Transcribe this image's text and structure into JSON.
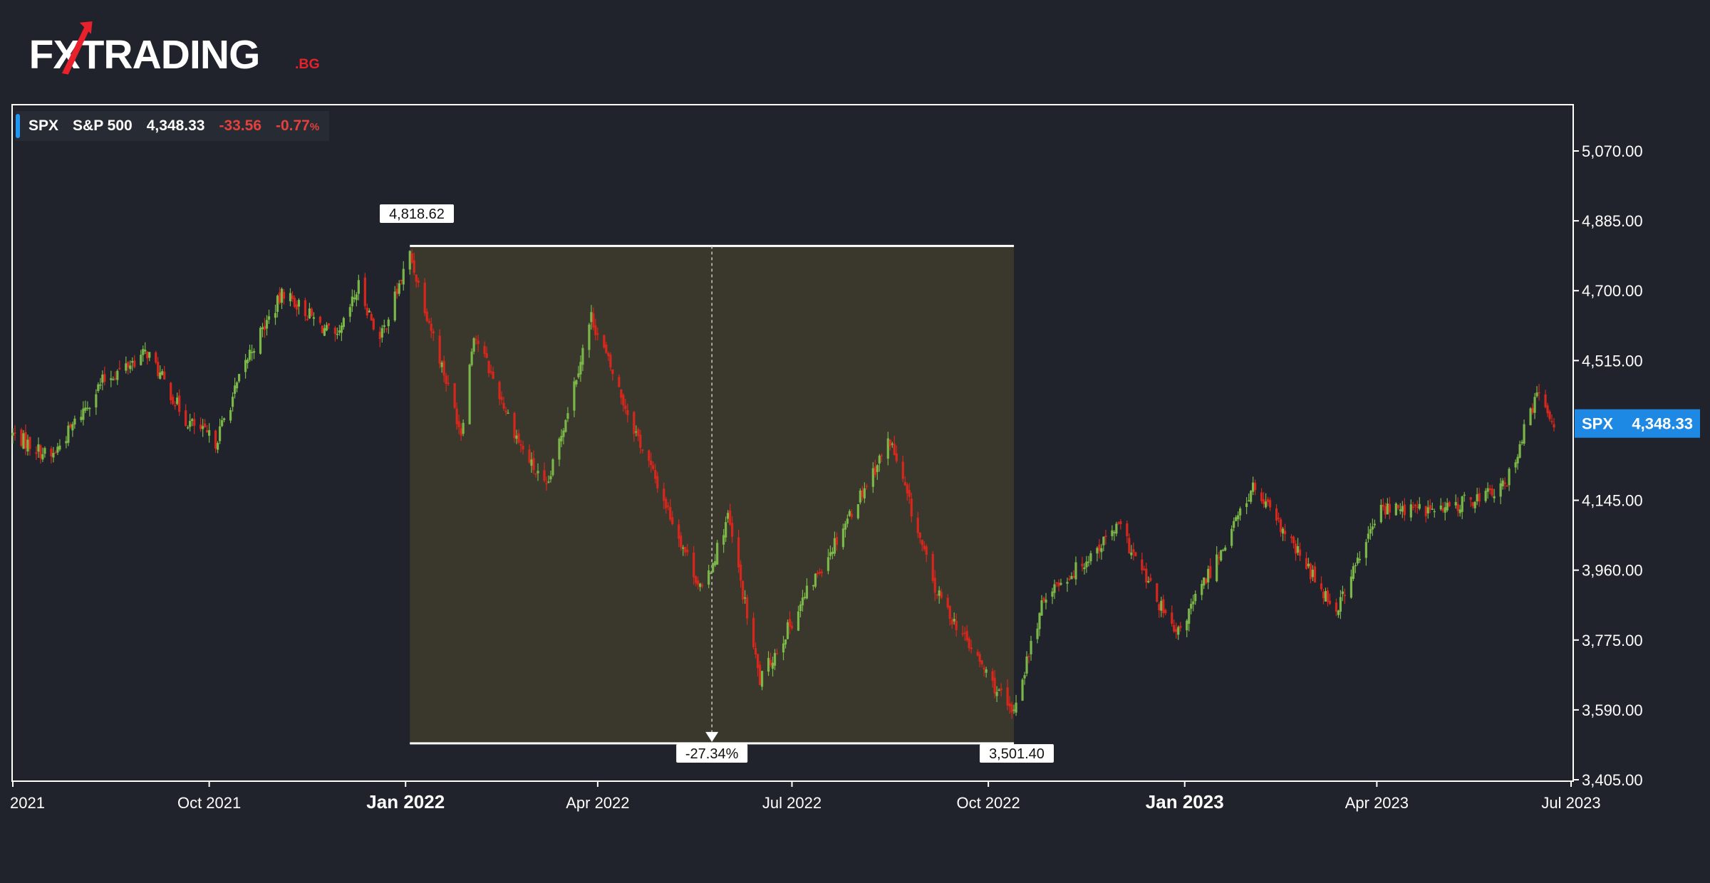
{
  "brand": {
    "logo_main": "FXTRADING",
    "logo_suffix": ".BG"
  },
  "legend": {
    "symbol": "SPX",
    "name": "S&P 500",
    "price": "4,348.33",
    "change": "-33.56",
    "change_pct": "-0.77",
    "pct_unit": "%"
  },
  "price_badge": {
    "symbol": "SPX",
    "value": "4,348.33",
    "color": "#1e88e5"
  },
  "measure": {
    "high_label": "4,818.62",
    "low_label": "3,501.40",
    "change_label": "-27.34%",
    "start_date": "2022-01-03",
    "end_date": "2022-10-13",
    "high_value": 4818.62,
    "low_value": 3501.4
  },
  "colors": {
    "up": "#7ab648",
    "down": "#d6271d",
    "background": "#20232b",
    "measure_fill": "#3a372d",
    "accent": "#2196f3"
  },
  "chart_data": {
    "type": "candlestick",
    "title": "",
    "xlabel": "",
    "ylabel": "",
    "ylim": [
      3405,
      5255
    ],
    "xlim": [
      "2021-07-01",
      "2023-07-01"
    ],
    "y_ticks": [
      "5,070.00",
      "4,885.00",
      "4,700.00",
      "4,515.00",
      "4,145.00",
      "3,960.00",
      "3,775.00",
      "3,590.00",
      "3,405.00"
    ],
    "y_tick_values": [
      5070,
      4885,
      4700,
      4515,
      4145,
      3960,
      3775,
      3590,
      3405
    ],
    "x_ticks": [
      {
        "date": "2021-07-01",
        "label": "2021",
        "major": false
      },
      {
        "date": "2021-10-01",
        "label": "Oct 2021",
        "major": false
      },
      {
        "date": "2022-01-01",
        "label": "Jan 2022",
        "major": true
      },
      {
        "date": "2022-04-01",
        "label": "Apr 2022",
        "major": false
      },
      {
        "date": "2022-07-01",
        "label": "Jul 2022",
        "major": false
      },
      {
        "date": "2022-10-01",
        "label": "Oct 2022",
        "major": false
      },
      {
        "date": "2023-01-01",
        "label": "Jan 2023",
        "major": true
      },
      {
        "date": "2023-04-01",
        "label": "Apr 2023",
        "major": false
      },
      {
        "date": "2023-07-01",
        "label": "Jul 2023",
        "major": false
      }
    ],
    "series": [
      {
        "name": "SPX",
        "close_path": [
          [
            "2021-07-01",
            4320
          ],
          [
            "2021-07-19",
            4258
          ],
          [
            "2021-08-12",
            4460
          ],
          [
            "2021-09-02",
            4537
          ],
          [
            "2021-09-20",
            4358
          ],
          [
            "2021-10-04",
            4300
          ],
          [
            "2021-10-20",
            4536
          ],
          [
            "2021-11-05",
            4697
          ],
          [
            "2021-11-30",
            4567
          ],
          [
            "2021-12-10",
            4712
          ],
          [
            "2021-12-20",
            4568
          ],
          [
            "2022-01-03",
            4796
          ],
          [
            "2022-01-27",
            4326
          ],
          [
            "2022-02-02",
            4590
          ],
          [
            "2022-02-24",
            4288
          ],
          [
            "2022-03-08",
            4170
          ],
          [
            "2022-03-29",
            4631
          ],
          [
            "2022-04-14",
            4392
          ],
          [
            "2022-05-20",
            3901
          ],
          [
            "2022-06-01",
            4101
          ],
          [
            "2022-06-16",
            3666
          ],
          [
            "2022-07-08",
            3899
          ],
          [
            "2022-08-16",
            4305
          ],
          [
            "2022-09-06",
            3908
          ],
          [
            "2022-10-12",
            3577
          ],
          [
            "2022-10-28",
            3901
          ],
          [
            "2022-11-10",
            3956
          ],
          [
            "2022-12-01",
            4076
          ],
          [
            "2022-12-28",
            3783
          ],
          [
            "2023-02-02",
            4179
          ],
          [
            "2023-03-13",
            3855
          ],
          [
            "2023-04-03",
            4124
          ],
          [
            "2023-05-02",
            4119
          ],
          [
            "2023-05-31",
            4180
          ],
          [
            "2023-06-15",
            4425
          ],
          [
            "2023-06-23",
            4348.33
          ]
        ]
      }
    ]
  }
}
